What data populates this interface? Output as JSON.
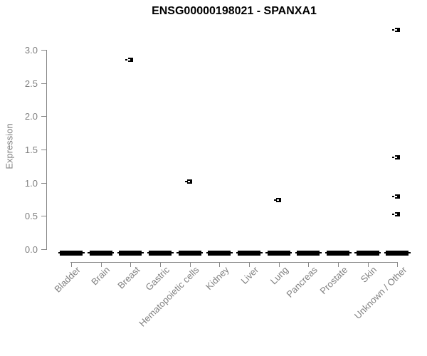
{
  "title": "ENSG00000198021 - SPANXA1",
  "colors": {
    "background": "#ffffff",
    "title_text": "#000000",
    "axis_line": "#888888",
    "tick_label_text": "#808080",
    "data_marks": "#000000"
  },
  "chart_data": {
    "type": "scatter",
    "subtype": "boxplot-with-outlier-points",
    "title": "ENSG00000198021 - SPANXA1",
    "xlabel": "",
    "ylabel": "Expression",
    "ylim": [
      0,
      3.4
    ],
    "yticks": [
      0.0,
      0.5,
      1.0,
      1.5,
      2.0,
      2.5,
      3.0
    ],
    "grid": false,
    "legend": false,
    "categories": [
      "Bladder",
      "Brain",
      "Breast",
      "Gastric",
      "Hematopoietic cells",
      "Kidney",
      "Liver",
      "Lung",
      "Pancreas",
      "Prostate",
      "Skin",
      "Unknown / Other"
    ],
    "box_median_per_category": [
      0,
      0,
      0,
      0,
      0,
      0,
      0,
      0,
      0,
      0,
      0,
      0
    ],
    "outlier_points": [
      {
        "category": "Breast",
        "values": [
          2.85
        ]
      },
      {
        "category": "Hematopoietic cells",
        "values": [
          1.02
        ]
      },
      {
        "category": "Lung",
        "values": [
          0.74
        ]
      },
      {
        "category": "Unknown / Other",
        "values": [
          3.3,
          1.38,
          0.79,
          0.52
        ]
      }
    ]
  }
}
